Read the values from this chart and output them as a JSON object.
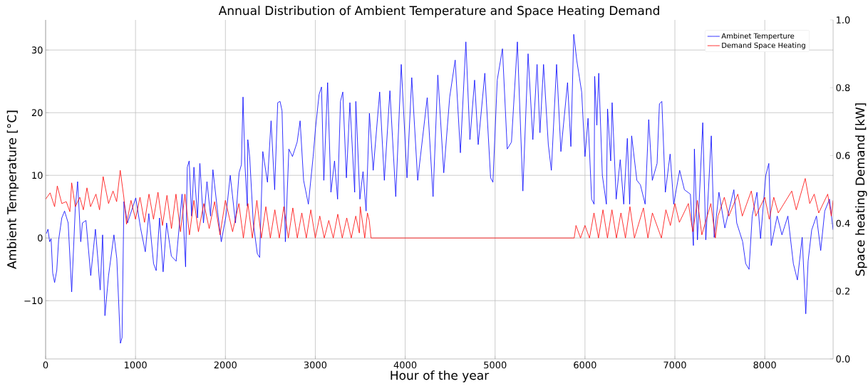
{
  "chart_data": {
    "type": "line",
    "title": "Annual Distribution of Ambient Temperature and Space Heating Demand",
    "xlabel": "Hour of the year",
    "ylabel": "Ambient Temperature [°C]",
    "y2label": "Space heating Demand [kW]",
    "xlim": [
      0,
      8760
    ],
    "ylim": [
      -19.3,
      34.8
    ],
    "y2lim": [
      0,
      1
    ],
    "xticks": [
      0,
      1000,
      2000,
      3000,
      4000,
      5000,
      6000,
      7000,
      8000
    ],
    "yticks": [
      {
        "value": -10,
        "label": "−10"
      },
      0,
      10,
      20,
      30
    ],
    "y2ticks": [
      {
        "value": 0,
        "label": "0.0"
      },
      {
        "value": 0.2,
        "label": "0.2"
      },
      {
        "value": 0.4,
        "label": "0.4"
      },
      {
        "value": 0.6,
        "label": "0.6"
      },
      {
        "value": 0.8,
        "label": "0.8"
      },
      {
        "value": 1,
        "label": "1.0"
      }
    ],
    "grid": true,
    "legend": "top right",
    "series": [
      {
        "name": "Ambinet Temperture",
        "color": "#0000ff",
        "x": [
          8,
          26,
          45,
          61,
          79,
          100,
          124,
          145,
          180,
          211,
          251,
          290,
          330,
          356,
          391,
          409,
          449,
          502,
          554,
          581,
          607,
          634,
          660,
          700,
          760,
          792,
          832,
          850,
          871,
          911,
          1003,
          1056,
          1109,
          1148,
          1201,
          1230,
          1267,
          1307,
          1346,
          1399,
          1452,
          1518,
          1557,
          1576,
          1597,
          1624,
          1650,
          1690,
          1716,
          1756,
          1795,
          1835,
          1861,
          1914,
          1954,
          2006,
          2054,
          2112,
          2152,
          2178,
          2196,
          2218,
          2244,
          2249,
          2270,
          2310,
          2355,
          2381,
          2416,
          2468,
          2508,
          2548,
          2582,
          2608,
          2630,
          2667,
          2706,
          2746,
          2798,
          2831,
          2870,
          2923,
          2976,
          3003,
          3042,
          3069,
          3095,
          3137,
          3174,
          3214,
          3248,
          3280,
          3306,
          3346,
          3385,
          3438,
          3451,
          3496,
          3531,
          3565,
          3602,
          3644,
          3716,
          3768,
          3830,
          3895,
          3956,
          4020,
          4073,
          4139,
          4245,
          4310,
          4363,
          4429,
          4495,
          4556,
          4614,
          4675,
          4720,
          4772,
          4812,
          4886,
          4950,
          4976,
          5024,
          5082,
          5135,
          5182,
          5248,
          5309,
          5367,
          5420,
          5467,
          5499,
          5539,
          5592,
          5626,
          5684,
          5732,
          5806,
          5843,
          5875,
          5909,
          5963,
          6000,
          6034,
          6074,
          6101,
          6108,
          6132,
          6153,
          6193,
          6238,
          6251,
          6286,
          6302,
          6347,
          6392,
          6431,
          6471,
          6497,
          6519,
          6577,
          6616,
          6669,
          6709,
          6749,
          6802,
          6828,
          6855,
          6894,
          6947,
          6987,
          7053,
          7106,
          7172,
          7206,
          7217,
          7251,
          7310,
          7344,
          7405,
          7437,
          7490,
          7556,
          7656,
          7688,
          7754,
          7788,
          7825,
          7860,
          7913,
          7953,
          8011,
          8045,
          8072,
          8138,
          8191,
          8257,
          8318,
          8363,
          8416,
          8456,
          8482,
          8522,
          8575,
          8622,
          8667,
          8720,
          8760
        ],
        "values": [
          0.7,
          1.4,
          -0.6,
          -0.1,
          -5.6,
          -7.1,
          -5.2,
          -0.3,
          3.2,
          4.3,
          2.4,
          -8.6,
          4.7,
          9.0,
          -0.6,
          2.4,
          2.8,
          -6.0,
          1.4,
          -3.3,
          -8.3,
          0.5,
          -12.4,
          -6.0,
          0.5,
          -3.3,
          -16.8,
          -15.9,
          5.8,
          2.4,
          6.4,
          1.6,
          -2.2,
          3.9,
          -4.1,
          -5.2,
          3.2,
          -5.4,
          2.4,
          -2.9,
          -3.7,
          7.0,
          -4.6,
          11.3,
          12.3,
          3.5,
          11.3,
          3.2,
          11.9,
          2.4,
          9.0,
          3.5,
          10.9,
          4.1,
          -0.6,
          3.5,
          10.0,
          2.4,
          10.4,
          11.7,
          22.5,
          11.5,
          5.1,
          15.7,
          13.0,
          2.4,
          -2.5,
          -3.1,
          13.8,
          8.9,
          18.7,
          7.7,
          21.6,
          21.8,
          20.3,
          -0.6,
          14.2,
          13.0,
          15.3,
          18.7,
          9.2,
          5.4,
          13.0,
          17.6,
          22.9,
          24.1,
          9.2,
          24.8,
          7.3,
          12.3,
          6.2,
          21.8,
          23.3,
          9.6,
          21.6,
          7.3,
          21.8,
          6.2,
          10.6,
          4.3,
          19.9,
          10.8,
          23.3,
          9.2,
          23.5,
          6.6,
          27.7,
          9.6,
          25.6,
          9.2,
          22.4,
          6.6,
          26.0,
          10.4,
          22.5,
          28.4,
          13.6,
          31.3,
          15.7,
          25.2,
          14.9,
          26.3,
          9.6,
          8.9,
          25.2,
          30.2,
          14.2,
          15.3,
          31.3,
          7.5,
          29.4,
          15.7,
          27.7,
          16.8,
          27.7,
          14.9,
          10.8,
          27.7,
          13.8,
          24.8,
          14.6,
          32.5,
          28.3,
          23.3,
          13.0,
          19.1,
          6.2,
          5.4,
          25.8,
          18.0,
          26.3,
          10.0,
          5.4,
          20.6,
          12.3,
          21.6,
          6.2,
          12.5,
          5.4,
          15.9,
          5.4,
          16.3,
          9.2,
          8.5,
          5.4,
          18.9,
          9.2,
          11.9,
          21.4,
          21.8,
          7.3,
          13.4,
          5.4,
          10.8,
          7.7,
          7.0,
          -1.2,
          14.2,
          -0.3,
          18.4,
          -0.3,
          16.3,
          0.1,
          7.3,
          1.6,
          7.7,
          2.4,
          -0.6,
          -4.1,
          -5.0,
          3.5,
          7.3,
          -0.1,
          10.0,
          11.9,
          -1.2,
          3.5,
          0.5,
          3.5,
          -4.1,
          -6.7,
          0.1,
          -12.1,
          -3.7,
          1.3,
          3.5,
          -2.0,
          4.3,
          6.2,
          1.3
        ]
      },
      {
        "name": "Demand Space Heating",
        "color": "#ff0000",
        "x": [
          0,
          50,
          100,
          130,
          180,
          230,
          270,
          290,
          330,
          380,
          420,
          460,
          500,
          560,
          600,
          640,
          700,
          750,
          790,
          830,
          870,
          900,
          950,
          1000,
          1050,
          1100,
          1150,
          1200,
          1250,
          1300,
          1350,
          1400,
          1450,
          1500,
          1550,
          1600,
          1650,
          1700,
          1760,
          1820,
          1880,
          1940,
          2000,
          2080,
          2150,
          2200,
          2250,
          2300,
          2350,
          2400,
          2450,
          2500,
          2550,
          2600,
          2650,
          2700,
          2750,
          2800,
          2850,
          2900,
          2950,
          3000,
          3050,
          3100,
          3150,
          3200,
          3250,
          3300,
          3350,
          3400,
          3450,
          3490,
          3500,
          3550,
          3580,
          3600,
          3620,
          5880,
          5900,
          5950,
          6000,
          6050,
          6100,
          6150,
          6200,
          6250,
          6300,
          6350,
          6400,
          6450,
          6500,
          6550,
          6650,
          6700,
          6750,
          6850,
          6900,
          6950,
          7000,
          7050,
          7150,
          7200,
          7250,
          7300,
          7400,
          7450,
          7480,
          7550,
          7600,
          7700,
          7750,
          7850,
          7900,
          8000,
          8050,
          8100,
          8150,
          8300,
          8350,
          8450,
          8500,
          8550,
          8600,
          8700,
          8740,
          8760
        ],
        "values": [
          6.2,
          7.2,
          5.0,
          8.3,
          5.5,
          5.8,
          4.2,
          8.8,
          5.0,
          6.5,
          4.5,
          8.0,
          5.0,
          7.0,
          4.5,
          9.8,
          5.5,
          7.5,
          5.8,
          10.8,
          6.5,
          2.2,
          6.0,
          3.0,
          6.5,
          2.5,
          7.0,
          3.0,
          7.3,
          2.0,
          6.8,
          1.5,
          7.0,
          1.0,
          7.0,
          0.5,
          6.0,
          1.0,
          5.5,
          1.5,
          5.8,
          0.5,
          6.0,
          1.0,
          5.5,
          0,
          5.5,
          0,
          6.0,
          0,
          5.0,
          0,
          4.5,
          0,
          5.0,
          0,
          4.8,
          0,
          4.0,
          0,
          4.5,
          0,
          3.5,
          0,
          2.8,
          0,
          3.8,
          0,
          3.2,
          0,
          3.5,
          0.8,
          5.0,
          0,
          4.0,
          2.8,
          0,
          0,
          2.0,
          0,
          2.0,
          0,
          4.0,
          0,
          4.5,
          0,
          4.5,
          0,
          4.0,
          0,
          5.0,
          0,
          4.8,
          0,
          4.0,
          0,
          4.5,
          2.0,
          5.5,
          2.5,
          5.5,
          1.0,
          6.0,
          0.5,
          5.5,
          0,
          3.5,
          6.5,
          3.5,
          7.0,
          3.5,
          7.5,
          3.5,
          6.5,
          3.0,
          6.5,
          4.0,
          7.5,
          4.5,
          9.5,
          5.5,
          7.0,
          4.0,
          7.0,
          3.5,
          6.0
        ]
      }
    ]
  }
}
